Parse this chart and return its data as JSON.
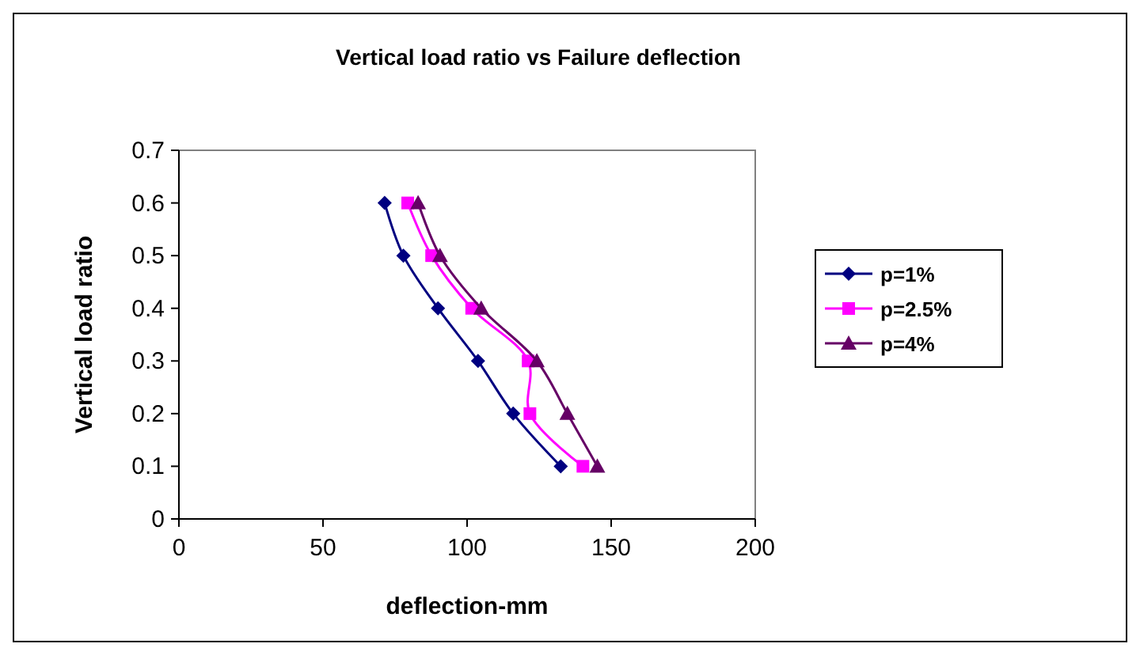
{
  "chart_data": {
    "type": "line",
    "title": "Vertical load ratio vs Failure deflection",
    "xlabel": "deflection-mm",
    "ylabel": "Vertical load ratio",
    "xlim": [
      0,
      200
    ],
    "xticks": [
      0,
      50,
      100,
      150,
      200
    ],
    "ylim": [
      0,
      0.7
    ],
    "yticks": [
      0,
      0.1,
      0.2,
      0.3,
      0.4,
      0.5,
      0.6,
      0.7
    ],
    "grid": false,
    "legend": "right",
    "line_style": "solid",
    "series": [
      {
        "name": "p=1%",
        "color": "#000080",
        "marker": "diamond",
        "x": [
          71.4,
          77.9,
          89.9,
          103.8,
          116,
          132.5
        ],
        "values": [
          0.6,
          0.5,
          0.4,
          0.3,
          0.2,
          0.1
        ]
      },
      {
        "name": "p=2.5%",
        "color": "#ff00ff",
        "marker": "square",
        "x": [
          79.4,
          87.7,
          101.6,
          121.2,
          121.8,
          140.2
        ],
        "values": [
          0.6,
          0.5,
          0.4,
          0.3,
          0.2,
          0.1
        ]
      },
      {
        "name": "p=4%",
        "color": "#660066",
        "marker": "triangle",
        "x": [
          83,
          90.6,
          104.9,
          124.2,
          134.8,
          145.2
        ],
        "values": [
          0.6,
          0.5,
          0.4,
          0.3,
          0.2,
          0.1
        ]
      }
    ]
  }
}
